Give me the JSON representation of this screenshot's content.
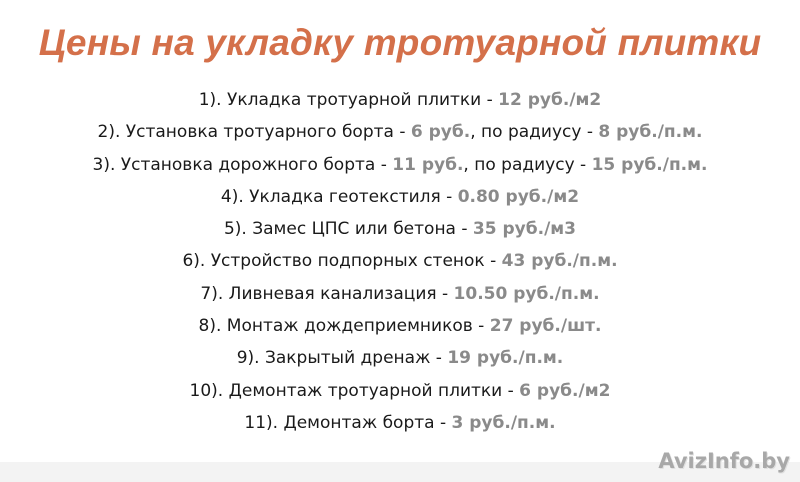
{
  "title": "Цены на укладку тротуарной плитки",
  "colors": {
    "title": "#d4704a",
    "price": "#8a8a8a",
    "text": "#1a1a1a"
  },
  "items": [
    {
      "parts": [
        {
          "t": "1). Укладка тротуарной плитки - "
        },
        {
          "t": "12 руб./м2",
          "price": true
        }
      ]
    },
    {
      "parts": [
        {
          "t": "2). Установка тротуарного борта - "
        },
        {
          "t": "6 руб.",
          "price": true
        },
        {
          "t": ", по радиусу - "
        },
        {
          "t": "8 руб./п.м.",
          "price": true
        }
      ]
    },
    {
      "parts": [
        {
          "t": "3). Установка дорожного борта - "
        },
        {
          "t": "11 руб.",
          "price": true
        },
        {
          "t": ", по радиусу - "
        },
        {
          "t": "15 руб./п.м.",
          "price": true
        }
      ]
    },
    {
      "parts": [
        {
          "t": "4). Укладка геотекстиля - "
        },
        {
          "t": "0.80 руб./м2",
          "price": true
        }
      ]
    },
    {
      "parts": [
        {
          "t": "5). Замес ЦПС или бетона - "
        },
        {
          "t": "35 руб./м3",
          "price": true
        }
      ]
    },
    {
      "parts": [
        {
          "t": "6). Устройство подпорных стенок - "
        },
        {
          "t": "43 руб./п.м.",
          "price": true
        }
      ]
    },
    {
      "parts": [
        {
          "t": "7). Ливневая канализация - "
        },
        {
          "t": "10.50 руб./п.м.",
          "price": true
        }
      ]
    },
    {
      "parts": [
        {
          "t": "8). Монтаж дождеприемников - "
        },
        {
          "t": "27 руб./шт.",
          "price": true
        }
      ]
    },
    {
      "parts": [
        {
          "t": "9). Закрытый дренаж - "
        },
        {
          "t": "19 руб./п.м.",
          "price": true
        }
      ]
    },
    {
      "parts": [
        {
          "t": "10). Демонтаж тротуарной плитки - "
        },
        {
          "t": "6 руб./м2",
          "price": true
        }
      ]
    },
    {
      "parts": [
        {
          "t": "11). Демонтаж борта - "
        },
        {
          "t": "3 руб./п.м.",
          "price": true
        }
      ]
    }
  ],
  "watermark": "AvizInfo.by"
}
